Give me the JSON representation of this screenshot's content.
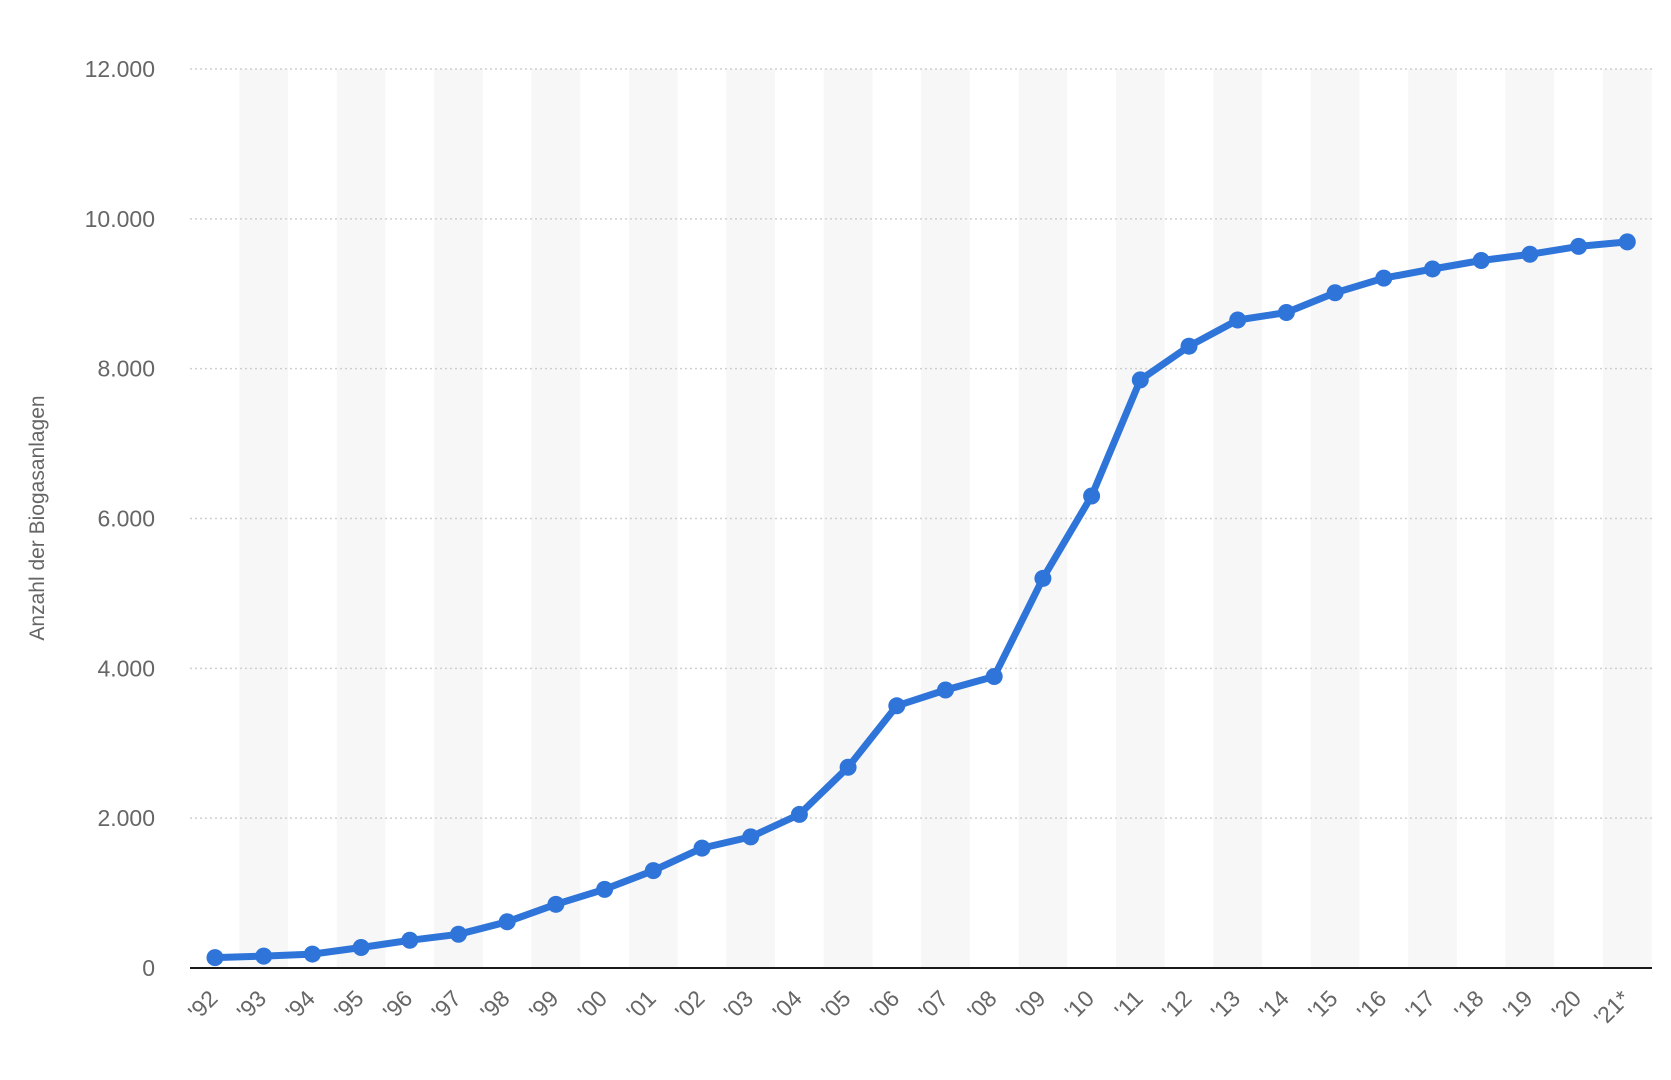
{
  "chart_data": {
    "type": "line",
    "title": "",
    "xlabel": "",
    "ylabel": "Anzahl der Biogasanlagen",
    "categories": [
      "'92",
      "'93",
      "'94",
      "'95",
      "'96",
      "'97",
      "'98",
      "'99",
      "'00",
      "'01",
      "'02",
      "'03",
      "'04",
      "'05",
      "'06",
      "'07",
      "'08",
      "'09",
      "'10",
      "'11",
      "'12",
      "'13",
      "'14",
      "'15",
      "'16",
      "'17",
      "'18",
      "'19",
      "'20",
      "'21*"
    ],
    "series": [
      {
        "name": "",
        "values": [
          139,
          159,
          186,
          274,
          370,
          450,
          617,
          850,
          1050,
          1300,
          1600,
          1750,
          2050,
          2680,
          3500,
          3711,
          3891,
          5200,
          6300,
          7850,
          8300,
          8650,
          8750,
          9013,
          9209,
          9331,
          9444,
          9527,
          9632,
          9692
        ]
      }
    ],
    "ylim": [
      0,
      12000
    ],
    "yticks": [
      0,
      2000,
      4000,
      6000,
      8000,
      10000,
      12000
    ],
    "ytick_labels": [
      "0",
      "2.000",
      "4.000",
      "6.000",
      "8.000",
      "10.000",
      "12.000"
    ],
    "grid": true,
    "legend": "none",
    "colors": {
      "line": "#2f75d9",
      "grid": "#cfcfcf",
      "band": "#f7f7f7",
      "axis": "#1a1a1a",
      "text": "#666666"
    }
  }
}
